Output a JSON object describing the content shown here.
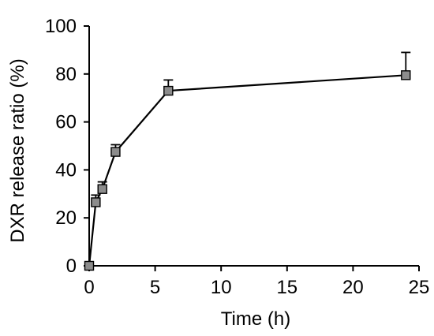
{
  "chart_data": {
    "type": "line",
    "title": "",
    "xlabel": "Time (h)",
    "ylabel": "DXR release ratio (%)",
    "xlim": [
      0,
      25
    ],
    "ylim": [
      0,
      100
    ],
    "xticks": [
      "0",
      "5",
      "10",
      "15",
      "20",
      "25"
    ],
    "yticks": [
      "0",
      "20",
      "40",
      "60",
      "80",
      "100"
    ],
    "grid": false,
    "legend": "none",
    "colors": {
      "marker_fill": "#8c8c8c",
      "line": "#000000"
    },
    "series": [
      {
        "x": [
          0,
          0.5,
          1,
          2,
          6,
          24
        ],
        "y": [
          0,
          26.5,
          32,
          47.5,
          73,
          79.5
        ],
        "error_plus": [
          0,
          3,
          3,
          3,
          4.5,
          9.5
        ]
      }
    ]
  }
}
